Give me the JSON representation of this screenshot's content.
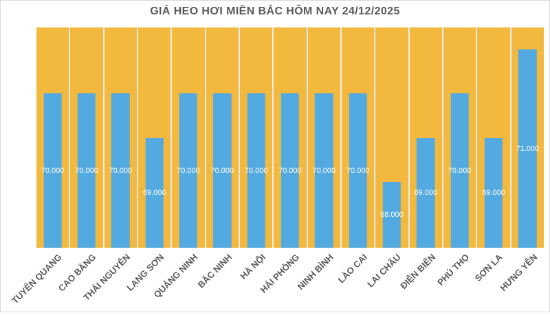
{
  "chart_data": {
    "type": "bar",
    "title": "GIÁ HEO HƠI MIỀN BẮC HÔM NAY 24/12/2025",
    "categories": [
      "TUYÊN QUANG",
      "CAO BẰNG",
      "THÁI NGUYÊN",
      "LẠNG SƠN",
      "QUẢNG NINH",
      "BẮC NINH",
      "HÀ NỘI",
      "HẢI PHÒNG",
      "NINH BÌNH",
      "LÀO CAI",
      "LAI CHÂU",
      "ĐIỆN BIÊN",
      "PHÚ THỌ",
      "SƠN LA",
      "HƯNG YÊN"
    ],
    "values": [
      70000,
      70000,
      70000,
      69000,
      70000,
      70000,
      70000,
      70000,
      70000,
      70000,
      68000,
      69000,
      70000,
      69000,
      71000
    ],
    "value_labels": [
      "70.000",
      "70.000",
      "70.000",
      "69.000",
      "70.000",
      "70.000",
      "70.000",
      "70.000",
      "70.000",
      "70.000",
      "68.000",
      "69.000",
      "70.000",
      "69.000",
      "71.000"
    ],
    "xlabel": "",
    "ylabel": "",
    "ylim": [
      66500,
      71500
    ],
    "grid": false,
    "legend": false,
    "value_label_position": "inside-center",
    "category_label_rotation_deg": -45,
    "colors": {
      "bar_fill": "#53aae1",
      "plot_background": "#f3b93f",
      "column_separator": "#ecebe8",
      "value_label_text": "#ffffff",
      "category_label_text": "#595959",
      "title_text": "#595959",
      "chart_border": "#d9d9d9",
      "chart_background": "#ffffff"
    }
  }
}
